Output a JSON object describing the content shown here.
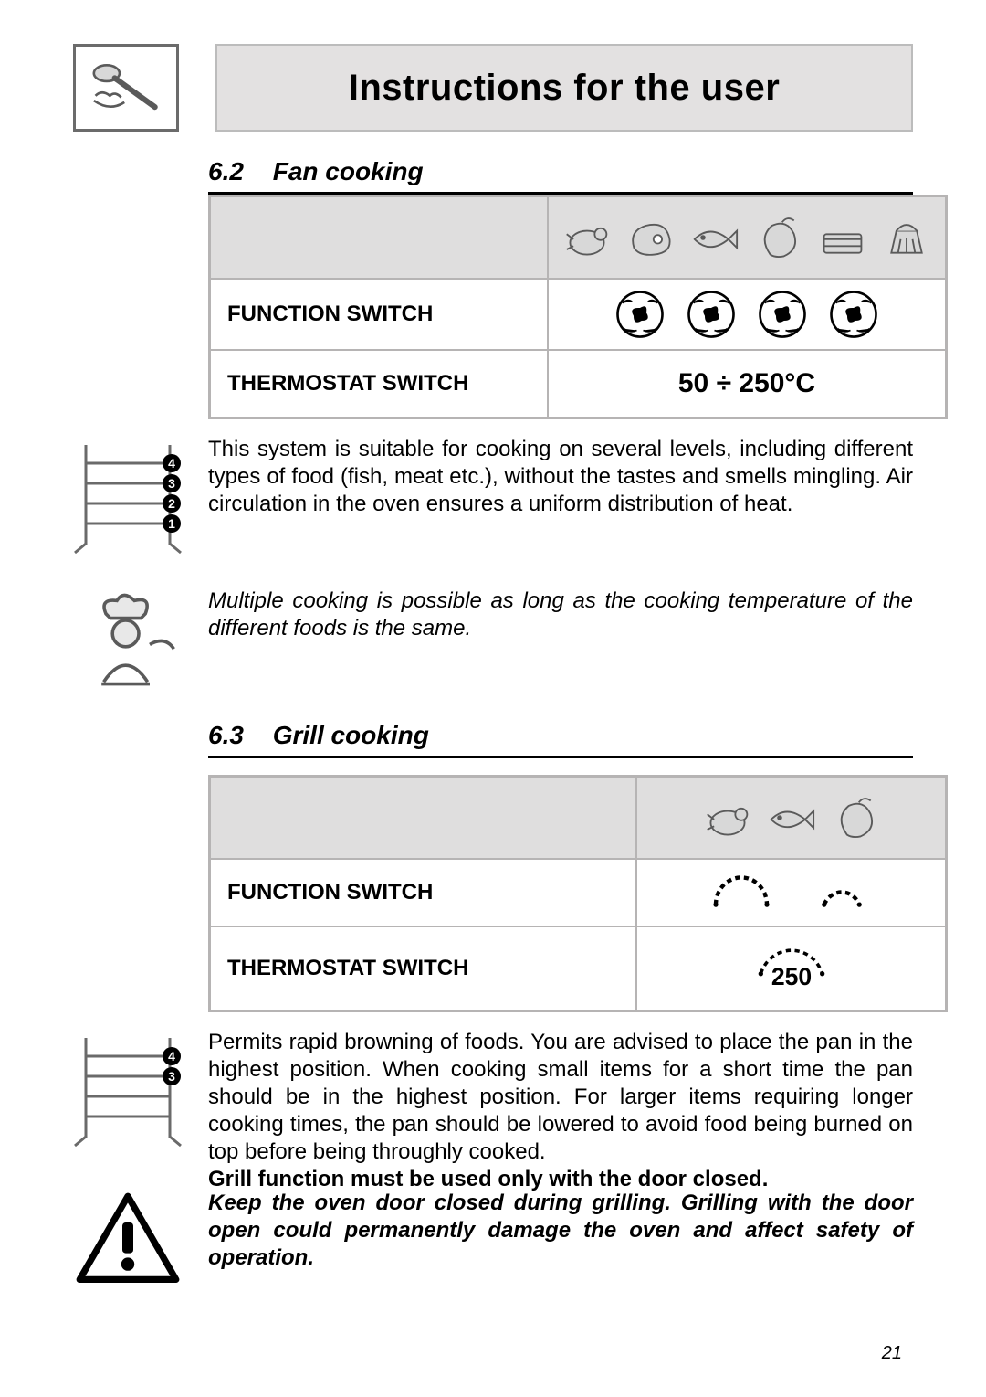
{
  "header": {
    "title": "Instructions for the user"
  },
  "section_fan": {
    "number": "6.2",
    "title": "Fan cooking",
    "row_function_label": "FUNCTION SWITCH",
    "row_thermostat_label": "THERMOSTAT SWITCH",
    "thermostat_value": "50 ÷ 250°C",
    "food_icons": [
      "poultry-icon",
      "meat-icon",
      "fish-icon",
      "vegetable-icon",
      "bake-icon",
      "dessert-icon"
    ],
    "knob_count": 4,
    "body": "This system is suitable for cooking on several levels, including different types of food (fish, meat etc.), without the tastes and smells mingling. Air circulation in the oven ensures a uniform distribution of heat.",
    "tip": "Multiple cooking is possible as long as the cooking temperature of the different foods is the same."
  },
  "section_grill": {
    "number": "6.3",
    "title": "Grill cooking",
    "row_function_label": "FUNCTION SWITCH",
    "row_thermostat_label": "THERMOSTAT SWITCH",
    "thermostat_value": "250",
    "food_icons": [
      "poultry-icon",
      "fish-icon",
      "vegetable-icon"
    ],
    "body": "Permits rapid browning of foods. You are advised to place the pan in the highest position. When cooking small items for a short time the pan should be in the highest position. For larger items requiring longer cooking times, the pan should be lowered to avoid food being burned on top before being throughly cooked.",
    "bold_line": "Grill function must be used only with the door closed.",
    "warn_text": "Keep the oven door closed during grilling. Grilling with the door open could permanently damage the oven and affect safety of operation."
  },
  "page_number": "21",
  "colors": {
    "band_bg": "#dfdede",
    "border_gray": "#b6b4b4",
    "icon_stroke": "#5a5a5a"
  }
}
